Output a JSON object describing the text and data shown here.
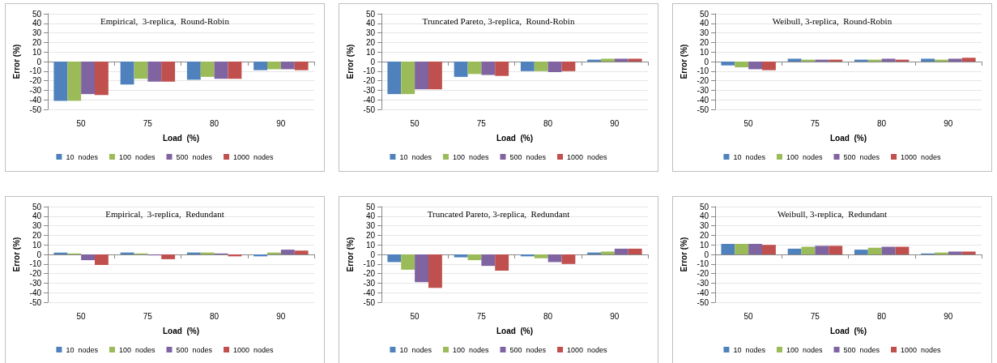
{
  "chart_data": [
    {
      "type": "bar",
      "title": "Empirical,  3-replica,  Round-Robin",
      "xlabel": "Load  (%)",
      "ylabel": "Error (%)",
      "categories": [
        "50",
        "75",
        "80",
        "90"
      ],
      "ylim": [
        -50,
        50
      ],
      "yticks": [
        -50,
        -40,
        -30,
        -20,
        -10,
        0,
        10,
        20,
        30,
        40,
        50
      ],
      "grid": "y",
      "legend": "bottom",
      "series": [
        {
          "name": "10  nodes",
          "color": "#4f81bd",
          "values": [
            -41,
            -24,
            -19,
            -9
          ]
        },
        {
          "name": "100  nodes",
          "color": "#9bbb59",
          "values": [
            -41,
            -18,
            -16,
            -8
          ]
        },
        {
          "name": "500  nodes",
          "color": "#8064a2",
          "values": [
            -34,
            -21,
            -18,
            -8
          ]
        },
        {
          "name": "1000  nodes",
          "color": "#c0504d",
          "values": [
            -35,
            -21,
            -18,
            -9
          ]
        }
      ]
    },
    {
      "type": "bar",
      "title": "Truncated Pareto, 3-replica,  Round-Robin",
      "xlabel": "Load  (%)",
      "ylabel": "Error (%)",
      "categories": [
        "50",
        "75",
        "80",
        "90"
      ],
      "ylim": [
        -50,
        50
      ],
      "yticks": [
        -50,
        -40,
        -30,
        -20,
        -10,
        0,
        10,
        20,
        30,
        40,
        50
      ],
      "grid": "y",
      "legend": "bottom",
      "series": [
        {
          "name": "10  nodes",
          "color": "#4f81bd",
          "values": [
            -34,
            -16,
            -10,
            2
          ]
        },
        {
          "name": "100  nodes",
          "color": "#9bbb59",
          "values": [
            -34,
            -13,
            -10,
            3
          ]
        },
        {
          "name": "500  nodes",
          "color": "#8064a2",
          "values": [
            -29,
            -14,
            -11,
            3
          ]
        },
        {
          "name": "1000  nodes",
          "color": "#c0504d",
          "values": [
            -29,
            -15,
            -10,
            3
          ]
        }
      ]
    },
    {
      "type": "bar",
      "title": "Weibull, 3-replica,  Round-Robin",
      "xlabel": "Load  (%)",
      "ylabel": "Error (%)",
      "categories": [
        "50",
        "75",
        "80",
        "90"
      ],
      "ylim": [
        -50,
        50
      ],
      "yticks": [
        -50,
        -40,
        -30,
        -20,
        -10,
        0,
        10,
        20,
        30,
        40,
        50
      ],
      "grid": "y",
      "legend": "bottom",
      "series": [
        {
          "name": "10  nodes",
          "color": "#4f81bd",
          "values": [
            -4,
            3,
            2,
            3
          ]
        },
        {
          "name": "100  nodes",
          "color": "#9bbb59",
          "values": [
            -6,
            2,
            2,
            2
          ]
        },
        {
          "name": "500  nodes",
          "color": "#8064a2",
          "values": [
            -8,
            2,
            3,
            3
          ]
        },
        {
          "name": "1000  nodes",
          "color": "#c0504d",
          "values": [
            -9,
            2,
            2,
            4
          ]
        }
      ]
    },
    {
      "type": "bar",
      "title": "Empirical,  3-replica,  Redundant",
      "xlabel": "Load  (%)",
      "ylabel": "Error (%)",
      "categories": [
        "50",
        "75",
        "80",
        "90"
      ],
      "ylim": [
        -50,
        50
      ],
      "yticks": [
        -50,
        -40,
        -30,
        -20,
        -10,
        0,
        10,
        20,
        30,
        40,
        50
      ],
      "grid": "y",
      "legend": "bottom",
      "series": [
        {
          "name": "10  nodes",
          "color": "#4f81bd",
          "values": [
            2,
            2,
            2,
            -2
          ]
        },
        {
          "name": "100  nodes",
          "color": "#9bbb59",
          "values": [
            1,
            1,
            2,
            2
          ]
        },
        {
          "name": "500  nodes",
          "color": "#8064a2",
          "values": [
            -6,
            -1,
            1,
            5
          ]
        },
        {
          "name": "1000  nodes",
          "color": "#c0504d",
          "values": [
            -11,
            -5,
            -2,
            4
          ]
        }
      ]
    },
    {
      "type": "bar",
      "title": "Truncated Pareto, 3-replica,  Redundant",
      "xlabel": "Load  (%)",
      "ylabel": "Error (%)",
      "categories": [
        "50",
        "75",
        "80",
        "90"
      ],
      "ylim": [
        -50,
        50
      ],
      "yticks": [
        -50,
        -40,
        -30,
        -20,
        -10,
        0,
        10,
        20,
        30,
        40,
        50
      ],
      "grid": "y",
      "legend": "bottom",
      "series": [
        {
          "name": "10  nodes",
          "color": "#4f81bd",
          "values": [
            -8,
            -3,
            -2,
            2
          ]
        },
        {
          "name": "100  nodes",
          "color": "#9bbb59",
          "values": [
            -16,
            -6,
            -4,
            3
          ]
        },
        {
          "name": "500  nodes",
          "color": "#8064a2",
          "values": [
            -29,
            -12,
            -8,
            6
          ]
        },
        {
          "name": "1000  nodes",
          "color": "#c0504d",
          "values": [
            -35,
            -17,
            -10,
            6
          ]
        }
      ]
    },
    {
      "type": "bar",
      "title": "Weibull, 3-replica,  Redundant",
      "xlabel": "Load  (%)",
      "ylabel": "Error (%)",
      "categories": [
        "50",
        "75",
        "80",
        "90"
      ],
      "ylim": [
        -50,
        50
      ],
      "yticks": [
        -50,
        -40,
        -30,
        -20,
        -10,
        0,
        10,
        20,
        30,
        40,
        50
      ],
      "grid": "y",
      "legend": "bottom",
      "series": [
        {
          "name": "10  nodes",
          "color": "#4f81bd",
          "values": [
            11,
            6,
            5,
            1
          ]
        },
        {
          "name": "100  nodes",
          "color": "#9bbb59",
          "values": [
            11,
            8,
            7,
            2
          ]
        },
        {
          "name": "500  nodes",
          "color": "#8064a2",
          "values": [
            11,
            9,
            8,
            3
          ]
        },
        {
          "name": "1000  nodes",
          "color": "#c0504d",
          "values": [
            10,
            9,
            8,
            3
          ]
        }
      ]
    }
  ]
}
